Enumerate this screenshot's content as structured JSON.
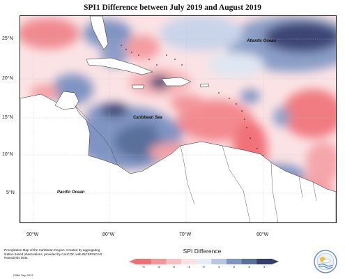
{
  "title": "SPI1 Difference between July 2019 and August 2019",
  "y_ticks": [
    "25°N",
    "20°N",
    "15°N",
    "10°N",
    "5°N"
  ],
  "x_ticks": [
    "90°W",
    "80°W",
    "70°W",
    "60°W"
  ],
  "labels": {
    "atlantic": "Atlantic Ocean",
    "caribbean": "Caribbean Sea",
    "pacific": "Pacific Ocean"
  },
  "note": "Precipitation Map of the Caribbean Region. Created by aggregating station based observations, provided by CariCOF, with INCEP/NCAR Reanalysis Data.",
  "credit": "CIMH Sep-2019",
  "legend": {
    "title": "SPI Difference",
    "ticks": [
      "-4",
      "-3",
      "-2",
      "-1",
      "0",
      "1",
      "2",
      "3",
      "4"
    ],
    "colors": [
      "#ee6f74",
      "#f3979b",
      "#f7c0c3",
      "#fbe1e3",
      "#e8ecf6",
      "#b7c6e2",
      "#7f94c2",
      "#5a6f9c",
      "#363c6d"
    ]
  },
  "logo": {
    "label": "CIMH"
  }
}
